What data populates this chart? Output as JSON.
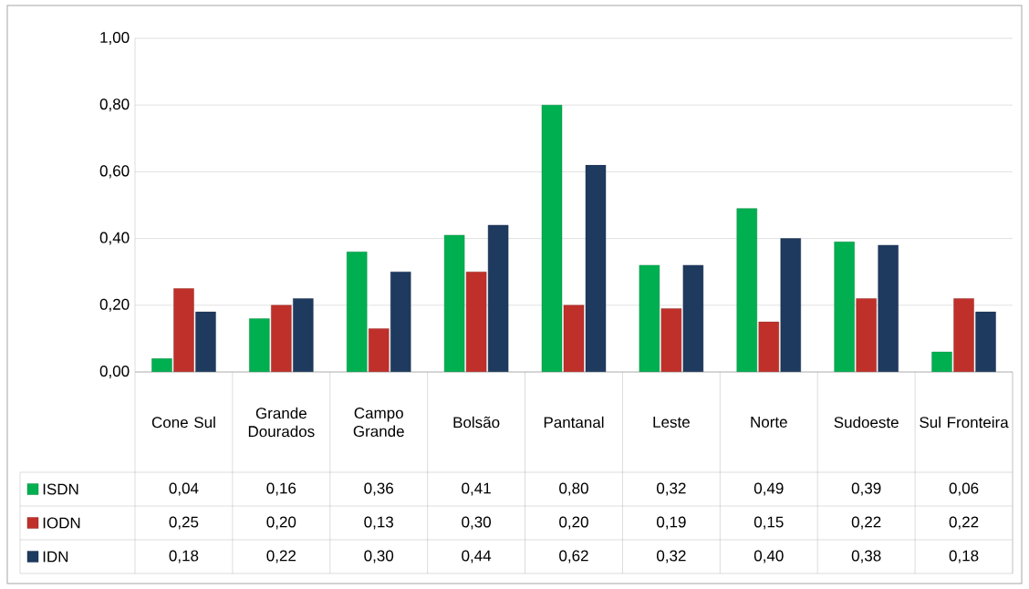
{
  "chart_data": {
    "type": "bar",
    "categories": [
      "Cone Sul",
      "Grande Dourados",
      "Campo Grande",
      "Bolsão",
      "Pantanal",
      "Leste",
      "Norte",
      "Sudoeste",
      "Sul Fronteira"
    ],
    "series": [
      {
        "name": "ISDN",
        "color": "#00b050",
        "values": [
          0.04,
          0.16,
          0.36,
          0.41,
          0.8,
          0.32,
          0.49,
          0.39,
          0.06
        ],
        "value_labels": [
          "0,04",
          "0,16",
          "0,36",
          "0,41",
          "0,80",
          "0,32",
          "0,49",
          "0,39",
          "0,06"
        ]
      },
      {
        "name": "IODN",
        "color": "#c0302a",
        "values": [
          0.25,
          0.2,
          0.13,
          0.3,
          0.2,
          0.19,
          0.15,
          0.22,
          0.22
        ],
        "value_labels": [
          "0,25",
          "0,20",
          "0,13",
          "0,30",
          "0,20",
          "0,19",
          "0,15",
          "0,22",
          "0,22"
        ]
      },
      {
        "name": "IDN",
        "color": "#1f3a5f",
        "values": [
          0.18,
          0.22,
          0.3,
          0.44,
          0.62,
          0.32,
          0.4,
          0.38,
          0.18
        ],
        "value_labels": [
          "0,18",
          "0,22",
          "0,30",
          "0,44",
          "0,62",
          "0,32",
          "0,40",
          "0,38",
          "0,18"
        ]
      }
    ],
    "ylim": [
      0,
      1
    ],
    "yticks": [
      {
        "value": 0,
        "label": "0,00"
      },
      {
        "value": 0.2,
        "label": "0,20"
      },
      {
        "value": 0.4,
        "label": "0,40"
      },
      {
        "value": 0.6,
        "label": "0,60"
      },
      {
        "value": 0.8,
        "label": "0,80"
      },
      {
        "value": 1,
        "label": "1,00"
      }
    ],
    "grid": "y",
    "legend": "bottom"
  }
}
